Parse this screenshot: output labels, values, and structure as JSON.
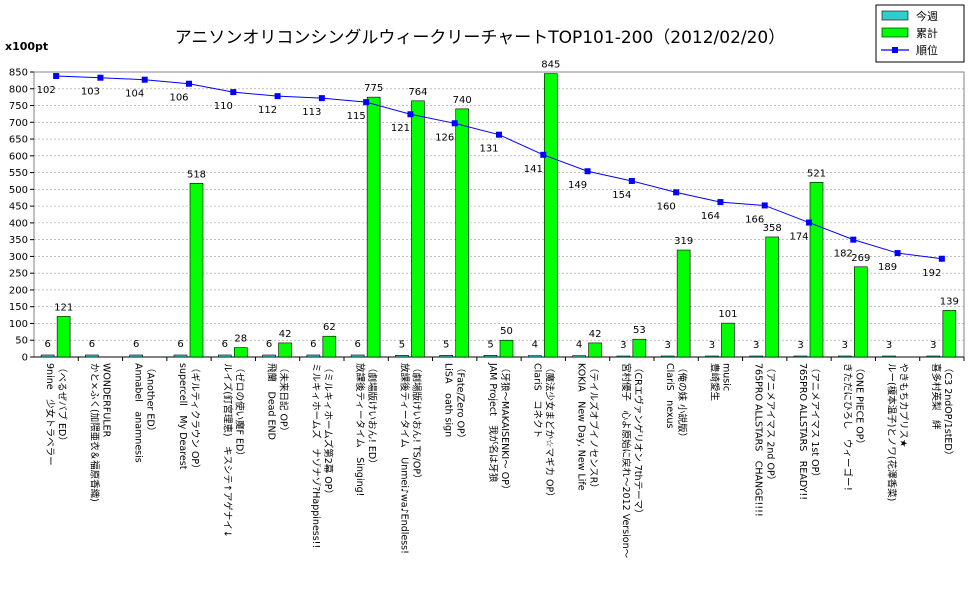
{
  "chart_data": {
    "type": "bar+line",
    "title": "アニソンオリコンシングルウィークリーチャートTOP101-200（2012/02/20）",
    "y_unit_label": "x100pt",
    "ylim": [
      0,
      850
    ],
    "yticks": [
      0,
      50,
      100,
      150,
      200,
      250,
      300,
      350,
      400,
      450,
      500,
      550,
      600,
      650,
      700,
      750,
      800,
      850
    ],
    "legend": {
      "position": "top-right",
      "items": [
        {
          "name": "今週",
          "color": "#33cccc",
          "marker": "bar"
        },
        {
          "name": "累計",
          "color": "#00ff00",
          "marker": "bar"
        },
        {
          "name": "順位",
          "color": "#0000ff",
          "marker": "line"
        }
      ]
    },
    "categories": [
      [
        "9nine　少女トラベラー",
        "（べるぜバブ ED）"
      ],
      [
        "かと×ふく(加隈亜衣＆福原香織)",
        "WONDERFULER"
      ],
      [
        "Annabel　anamnesis",
        "（Another ED）"
      ],
      [
        "supercell　My Dearest",
        "（ギルティクラウン OP）"
      ],
      [
        "ルイズ(釘宮理恵)　キスシテ↑アゲナイ↓",
        "（ゼロの使い魔F ED）"
      ],
      [
        "飛蘭　Dead END",
        "（未来日記 OP）"
      ],
      [
        "ミルキィホームズ　ナゾナゾ?Happiness!!",
        "（ミルキィホームズ第2幕 OP）"
      ],
      [
        "放課後ティータイム　Singing!",
        "（劇場版けいおん! ED）"
      ],
      [
        "放課後ティータイム　Unmei♪wa♪Endless!",
        "（劇場版けいおん! TS/OP）"
      ],
      [
        "LiSA　oath sign",
        "（Fate/Zero OP）"
      ],
      [
        "JAM Project　我が名は牙狼",
        "（牙狼～MAKAISENKI～ OP）"
      ],
      [
        "ClariS　コネクト",
        "（魔法少女まどか☆マギカ OP）"
      ],
      [
        "KOKIA　New Day, New Life",
        "（テイルズオブイノセンスR）"
      ],
      [
        "宮村優子　心よ原始に戻れ～2012 Version～",
        "（CRエヴァンゲリオン 7thテーマ）"
      ],
      [
        "ClariS　nexus",
        "（俺の妹 小説版）"
      ],
      [
        "豊崎愛生",
        "music"
      ],
      [
        "765PRO ALLSTARS　CHANGE!!!!",
        "（アニメアイマス 2nd OP）"
      ],
      [
        "765PRO ALLSTARS　READY!!",
        "（アニメアイマス 1st OP）"
      ],
      [
        "きただにひろし　ウィーゴー！",
        "（ONE PIECE OP）"
      ],
      [
        "ルー(榎本温子)とノワ(花澤香菜)",
        "やきもちカプリス★"
      ],
      [
        "喜多村英梨　絆",
        "（C3 2ndOP/1stED）"
      ]
    ],
    "series": [
      {
        "name": "今週",
        "values": [
          6,
          6,
          6,
          6,
          6,
          6,
          6,
          6,
          5,
          5,
          5,
          4,
          4,
          3,
          3,
          3,
          3,
          3,
          3,
          3,
          3
        ]
      },
      {
        "name": "累計",
        "values": [
          121,
          null,
          null,
          518,
          28,
          42,
          62,
          775,
          764,
          740,
          50,
          845,
          42,
          53,
          319,
          101,
          358,
          521,
          269,
          null,
          139
        ]
      },
      {
        "name": "順位",
        "values": [
          102,
          103,
          104,
          106,
          110,
          112,
          113,
          115,
          121,
          126,
          131,
          141,
          149,
          154,
          160,
          164,
          166,
          174,
          182,
          189,
          192
        ]
      }
    ],
    "rank_line_y": [
      838,
      833,
      827,
      815,
      790,
      778,
      772,
      760,
      724,
      697,
      663,
      603,
      554,
      525,
      491,
      462,
      452,
      401,
      350,
      310,
      293
    ]
  }
}
